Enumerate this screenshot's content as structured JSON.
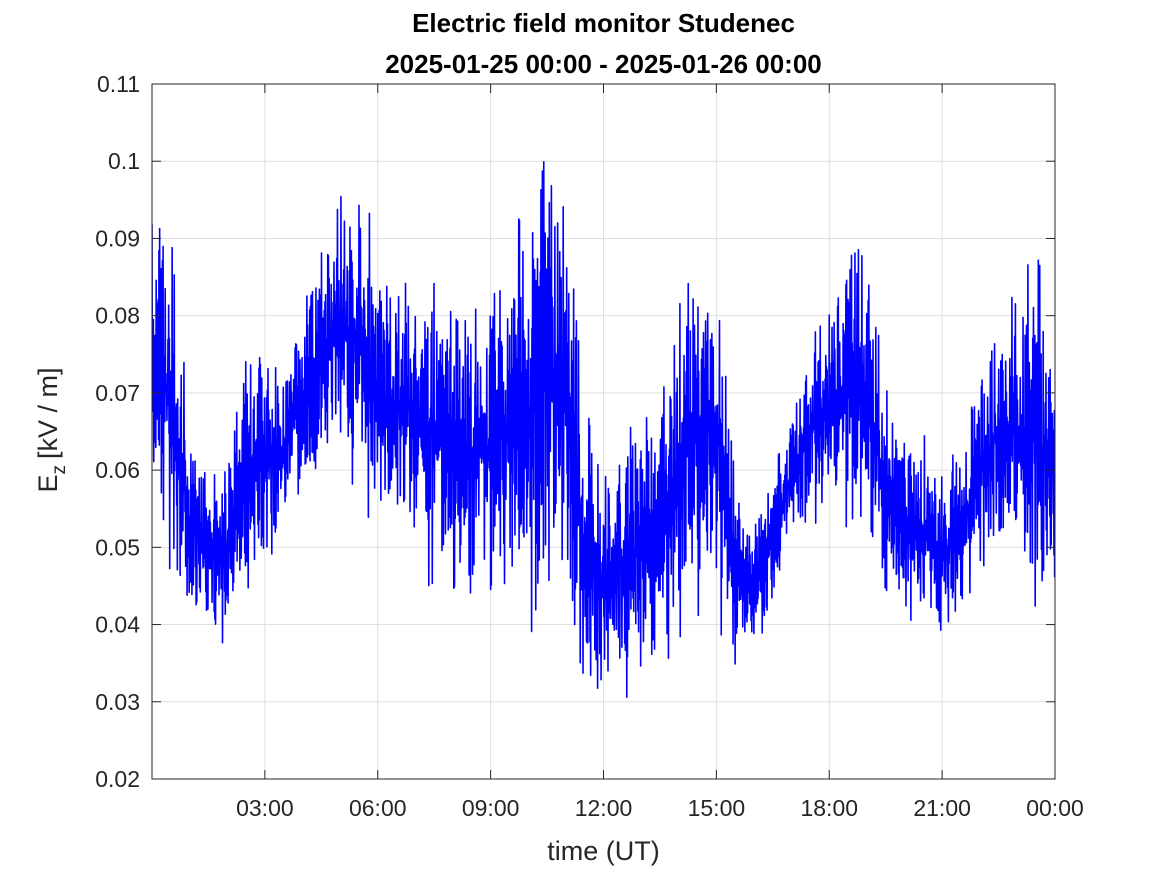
{
  "chart_data": {
    "type": "line",
    "title": "Electric field monitor Studenec",
    "subtitle": "2025-01-25 00:00 - 2025-01-26 00:00",
    "xlabel": "time (UT)",
    "ylabel": {
      "main": "E",
      "subscript": "z",
      "unit": "[kV / m]"
    },
    "xlim": [
      "2025-01-25 00:00",
      "2025-01-26 00:00"
    ],
    "xlim_hours": [
      0,
      24
    ],
    "ylim": [
      0.02,
      0.11
    ],
    "grid": true,
    "legend": "none",
    "x_ticks": [
      {
        "hour": 3,
        "label": "03:00"
      },
      {
        "hour": 6,
        "label": "06:00"
      },
      {
        "hour": 9,
        "label": "09:00"
      },
      {
        "hour": 12,
        "label": "12:00"
      },
      {
        "hour": 15,
        "label": "15:00"
      },
      {
        "hour": 18,
        "label": "18:00"
      },
      {
        "hour": 21,
        "label": "21:00"
      },
      {
        "hour": 24,
        "label": "00:00"
      }
    ],
    "y_ticks": [
      {
        "value": 0.02,
        "label": "0.02"
      },
      {
        "value": 0.03,
        "label": "0.03"
      },
      {
        "value": 0.04,
        "label": "0.04"
      },
      {
        "value": 0.05,
        "label": "0.05"
      },
      {
        "value": 0.06,
        "label": "0.06"
      },
      {
        "value": 0.07,
        "label": "0.07"
      },
      {
        "value": 0.08,
        "label": "0.08"
      },
      {
        "value": 0.09,
        "label": "0.09"
      },
      {
        "value": 0.1,
        "label": "0.1"
      },
      {
        "value": 0.11,
        "label": "0.11"
      }
    ],
    "series": [
      {
        "color": "#0000ff",
        "envelope_time": [
          "2025-01-25 00:00",
          "2025-01-25 00:30",
          "2025-01-25 01:00",
          "2025-01-25 01:30",
          "2025-01-25 02:00",
          "2025-01-25 02:30",
          "2025-01-25 03:00",
          "2025-01-25 03:30",
          "2025-01-25 04:00",
          "2025-01-25 04:30",
          "2025-01-25 05:00",
          "2025-01-25 05:30",
          "2025-01-25 06:00",
          "2025-01-25 06:30",
          "2025-01-25 07:00",
          "2025-01-25 07:30",
          "2025-01-25 08:00",
          "2025-01-25 08:30",
          "2025-01-25 09:00",
          "2025-01-25 09:30",
          "2025-01-25 10:00",
          "2025-01-25 10:30",
          "2025-01-25 11:00",
          "2025-01-25 11:30",
          "2025-01-25 12:00",
          "2025-01-25 12:30",
          "2025-01-25 13:00",
          "2025-01-25 13:30",
          "2025-01-25 14:00",
          "2025-01-25 14:30",
          "2025-01-25 15:00",
          "2025-01-25 15:30",
          "2025-01-25 16:00",
          "2025-01-25 16:30",
          "2025-01-25 17:00",
          "2025-01-25 17:30",
          "2025-01-25 18:00",
          "2025-01-25 18:30",
          "2025-01-25 19:00",
          "2025-01-25 19:30",
          "2025-01-25 20:00",
          "2025-01-25 20:30",
          "2025-01-25 21:00",
          "2025-01-25 21:30",
          "2025-01-25 22:00",
          "2025-01-25 22:30",
          "2025-01-25 23:00",
          "2025-01-25 23:30",
          "2025-01-26 00:00"
        ],
        "envelope_min": [
          0.051,
          0.043,
          0.039,
          0.037,
          0.036,
          0.04,
          0.045,
          0.05,
          0.055,
          0.058,
          0.06,
          0.052,
          0.051,
          0.05,
          0.047,
          0.043,
          0.042,
          0.041,
          0.04,
          0.039,
          0.037,
          0.036,
          0.034,
          0.028,
          0.027,
          0.03,
          0.031,
          0.033,
          0.035,
          0.037,
          0.038,
          0.034,
          0.036,
          0.042,
          0.048,
          0.052,
          0.053,
          0.051,
          0.049,
          0.042,
          0.04,
          0.038,
          0.037,
          0.04,
          0.045,
          0.047,
          0.046,
          0.034,
          0.045
        ],
        "envelope_max": [
          0.099,
          0.095,
          0.068,
          0.062,
          0.064,
          0.081,
          0.078,
          0.076,
          0.084,
          0.092,
          0.1,
          0.1,
          0.089,
          0.086,
          0.089,
          0.087,
          0.086,
          0.082,
          0.085,
          0.093,
          0.097,
          0.107,
          0.101,
          0.07,
          0.064,
          0.065,
          0.07,
          0.073,
          0.084,
          0.093,
          0.096,
          0.06,
          0.054,
          0.06,
          0.072,
          0.078,
          0.083,
          0.093,
          0.092,
          0.073,
          0.066,
          0.066,
          0.06,
          0.066,
          0.073,
          0.085,
          0.084,
          0.094,
          0.076
        ]
      }
    ]
  }
}
